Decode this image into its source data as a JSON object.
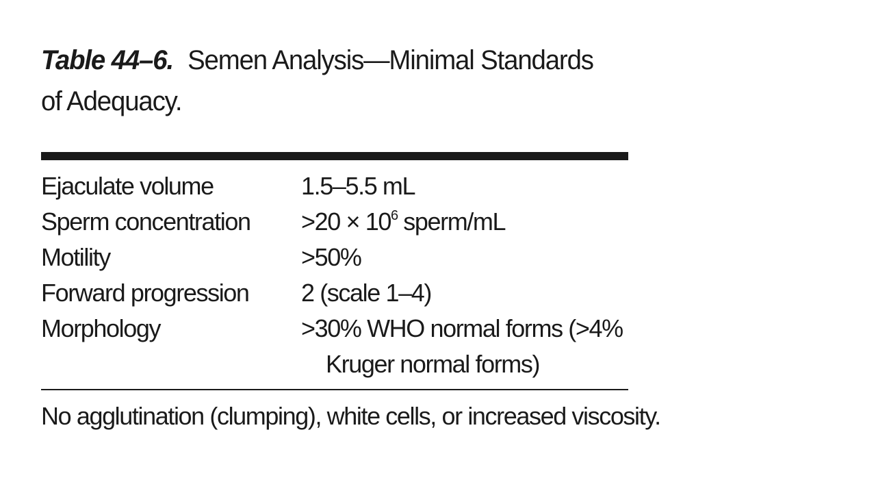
{
  "table": {
    "label": "Table 44–6.",
    "title_line1": "Semen Analysis—Minimal Standards",
    "title_line2": "of Adequacy."
  },
  "rows": [
    {
      "parameter": "Ejaculate volume",
      "value": "1.5–5.5 mL"
    },
    {
      "parameter": "Sperm concentration",
      "value_prefix": ">20 × 10",
      "value_sup": "6",
      "value_suffix": " sperm/mL"
    },
    {
      "parameter": "Motility",
      "value": ">50%"
    },
    {
      "parameter": "Forward progression",
      "value": "2 (scale 1–4)"
    },
    {
      "parameter": "Morphology",
      "value": ">30% WHO normal forms (>4%",
      "value_cont": "Kruger normal forms)"
    }
  ],
  "footnote": "No agglutination (clumping), white cells, or increased viscosity."
}
